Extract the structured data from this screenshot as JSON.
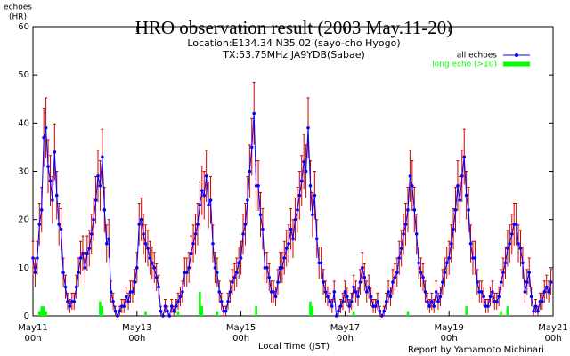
{
  "chart_data": {
    "type": "line",
    "title": "HRO observation result (2003 May.11-20)",
    "subtitle": [
      "Location:E134.34 N35.02 (sayo-cho Hyogo)",
      "TX:53.75MHz JA9YDB(Sabae)"
    ],
    "ylabel": [
      "echoes",
      "(HR)"
    ],
    "xlabel": "Local Time (JST)",
    "credit": "Report by Yamamoto Michinari",
    "xlim": [
      0,
      240
    ],
    "ylim": [
      0,
      60
    ],
    "xticks": [
      {
        "value": 0,
        "label": "May11\n00h"
      },
      {
        "value": 48,
        "label": "May13\n00h"
      },
      {
        "value": 96,
        "label": "May15\n00h"
      },
      {
        "value": 144,
        "label": "May17\n00h"
      },
      {
        "value": 192,
        "label": "May19\n00h"
      },
      {
        "value": 240,
        "label": "May21\n00h"
      }
    ],
    "yticks": [
      0,
      10,
      20,
      30,
      40,
      50,
      60
    ],
    "error_bars": "sqrt",
    "error_color": "#cc0000",
    "series": [
      {
        "name": "all echoes",
        "color": "#0000ff",
        "x": [
          0,
          1,
          2,
          3,
          4,
          5,
          6,
          7,
          8,
          9,
          10,
          11,
          12,
          13,
          14,
          15,
          16,
          17,
          18,
          19,
          20,
          21,
          22,
          23,
          24,
          25,
          26,
          27,
          28,
          29,
          30,
          31,
          32,
          33,
          34,
          35,
          36,
          37,
          38,
          39,
          40,
          41,
          42,
          43,
          44,
          45,
          46,
          47,
          48,
          49,
          50,
          51,
          52,
          53,
          54,
          55,
          56,
          57,
          58,
          59,
          60,
          61,
          62,
          63,
          64,
          65,
          66,
          67,
          68,
          69,
          70,
          71,
          72,
          73,
          74,
          75,
          76,
          77,
          78,
          79,
          80,
          81,
          82,
          83,
          84,
          85,
          86,
          87,
          88,
          89,
          90,
          91,
          92,
          93,
          94,
          95,
          96,
          97,
          98,
          99,
          100,
          101,
          102,
          103,
          104,
          105,
          106,
          107,
          108,
          109,
          110,
          111,
          112,
          113,
          114,
          115,
          116,
          117,
          118,
          119,
          120,
          121,
          122,
          123,
          124,
          125,
          126,
          127,
          128,
          129,
          130,
          131,
          132,
          133,
          134,
          135,
          136,
          137,
          138,
          139,
          140,
          141,
          142,
          143,
          144,
          145,
          146,
          147,
          148,
          149,
          150,
          151,
          152,
          153,
          154,
          155,
          156,
          157,
          158,
          159,
          160,
          161,
          162,
          163,
          164,
          165,
          166,
          167,
          168,
          169,
          170,
          171,
          172,
          173,
          174,
          175,
          176,
          177,
          178,
          179,
          180,
          181,
          182,
          183,
          184,
          185,
          186,
          187,
          188,
          189,
          190,
          191,
          192,
          193,
          194,
          195,
          196,
          197,
          198,
          199,
          200,
          201,
          202,
          203,
          204,
          205,
          206,
          207,
          208,
          209,
          210,
          211,
          212,
          213,
          214,
          215,
          216,
          217,
          218,
          219,
          220,
          221,
          222,
          223,
          224,
          225,
          226,
          227,
          228,
          229,
          230,
          231,
          232,
          233,
          234,
          235,
          236,
          237,
          238,
          239
        ],
        "values": [
          12,
          9,
          12,
          19,
          22,
          37,
          39,
          31,
          28,
          24,
          34,
          25,
          19,
          18,
          9,
          6,
          3,
          2,
          3,
          3,
          6,
          9,
          12,
          13,
          10,
          13,
          14,
          17,
          20,
          24,
          29,
          27,
          33,
          22,
          15,
          16,
          5,
          3,
          1,
          0,
          1,
          2,
          2,
          4,
          3,
          5,
          5,
          7,
          10,
          19,
          20,
          17,
          15,
          14,
          12,
          11,
          10,
          8,
          6,
          1,
          0,
          2,
          1,
          0,
          2,
          1,
          2,
          3,
          4,
          5,
          9,
          9,
          10,
          13,
          15,
          17,
          19,
          23,
          26,
          25,
          29,
          23,
          24,
          15,
          10,
          9,
          5,
          3,
          1,
          1,
          3,
          5,
          7,
          8,
          9,
          11,
          12,
          17,
          19,
          24,
          30,
          35,
          42,
          27,
          27,
          21,
          18,
          10,
          10,
          8,
          5,
          5,
          4,
          7,
          10,
          10,
          12,
          14,
          15,
          18,
          16,
          20,
          22,
          25,
          28,
          32,
          30,
          39,
          27,
          21,
          25,
          16,
          11,
          11,
          7,
          5,
          4,
          3,
          2,
          5,
          0,
          1,
          2,
          3,
          5,
          4,
          2,
          3,
          6,
          5,
          4,
          7,
          10,
          8,
          5,
          6,
          4,
          2,
          2,
          3,
          1,
          0,
          1,
          3,
          5,
          4,
          7,
          8,
          9,
          12,
          14,
          17,
          19,
          22,
          29,
          27,
          22,
          17,
          11,
          9,
          8,
          5,
          3,
          2,
          3,
          2,
          5,
          3,
          4,
          7,
          9,
          11,
          12,
          15,
          18,
          22,
          27,
          24,
          29,
          33,
          25,
          22,
          15,
          12,
          12,
          7,
          5,
          5,
          4,
          2,
          2,
          4,
          5,
          3,
          3,
          4,
          7,
          9,
          11,
          14,
          15,
          17,
          19,
          19,
          15,
          14,
          11,
          5,
          7,
          9,
          4,
          1,
          2,
          1,
          3,
          3,
          5,
          6,
          5,
          7
        ]
      },
      {
        "name": "long echo (>10)",
        "color": "#00ff00",
        "type": "bar",
        "x": [
          3,
          4,
          5,
          6,
          31,
          32,
          52,
          67,
          77,
          78,
          85,
          103,
          128,
          129,
          148,
          173,
          200,
          216,
          219
        ],
        "values": [
          1,
          2,
          2,
          1,
          3,
          2,
          1,
          1,
          5,
          2,
          1,
          2,
          3,
          2,
          1,
          1,
          2,
          1,
          2
        ]
      }
    ]
  }
}
